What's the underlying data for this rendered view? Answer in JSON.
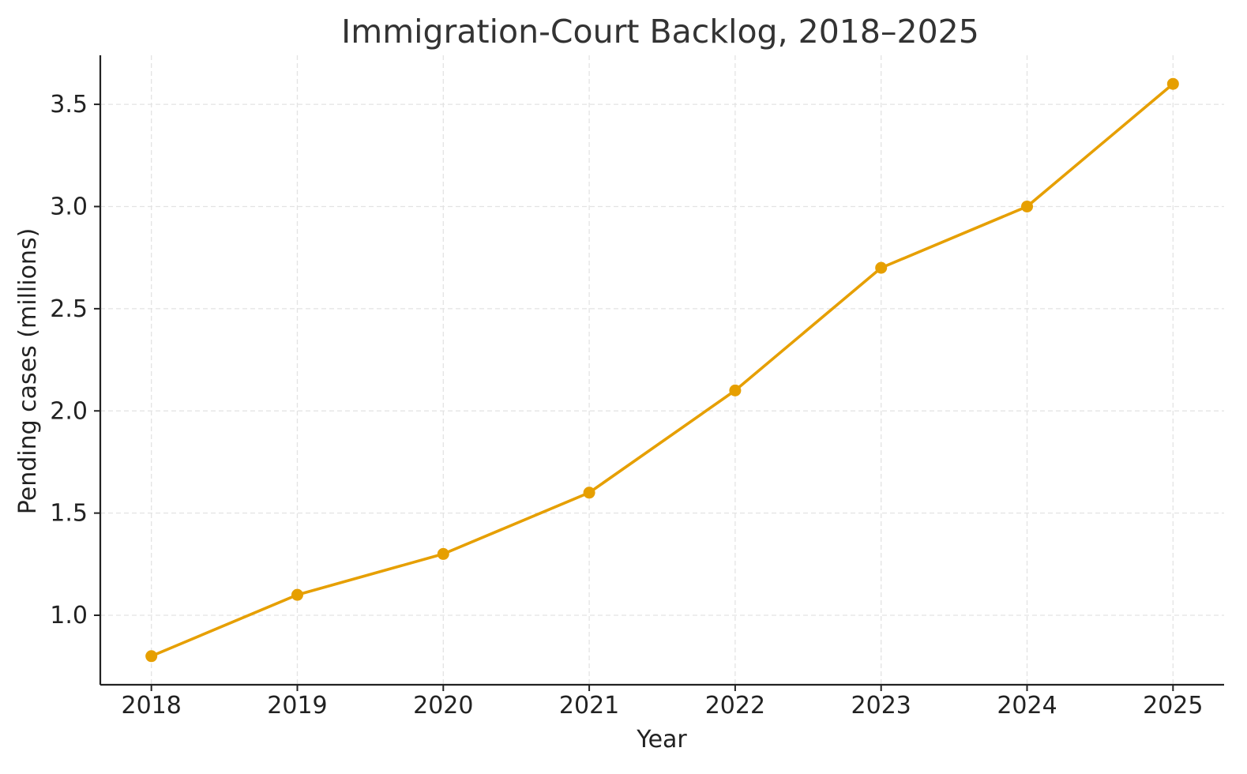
{
  "chart_data": {
    "type": "line",
    "title": "Immigration-Court Backlog, 2018–2025",
    "xlabel": "Year",
    "ylabel": "Pending cases (millions)",
    "x": [
      2018,
      2019,
      2020,
      2021,
      2022,
      2023,
      2024,
      2025
    ],
    "x_tick_labels": [
      "2018",
      "2019",
      "2020",
      "2021",
      "2022",
      "2023",
      "2024",
      "2025"
    ],
    "series": [
      {
        "values": [
          0.8,
          1.1,
          1.3,
          1.6,
          2.1,
          2.7,
          3.0,
          3.6
        ],
        "color": "#E69F00"
      }
    ],
    "ylim": [
      0.66,
      3.74
    ],
    "xlim": [
      2017.65,
      2025.35
    ],
    "y_ticks": [
      1.0,
      1.5,
      2.0,
      2.5,
      3.0,
      3.5
    ],
    "y_tick_labels": [
      "1.0",
      "1.5",
      "2.0",
      "2.5",
      "3.0",
      "3.5"
    ],
    "grid": true,
    "legend": "none",
    "marker": "circle"
  }
}
